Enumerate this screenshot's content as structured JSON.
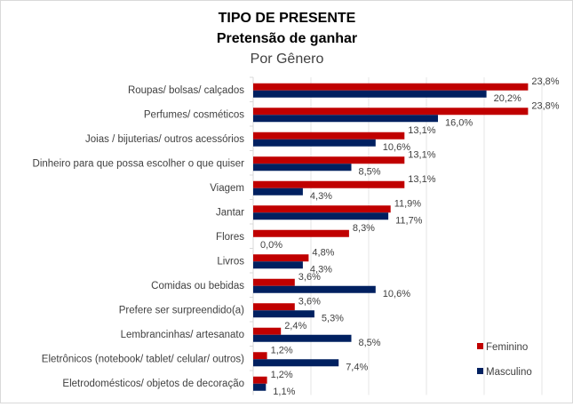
{
  "chart_data": {
    "type": "bar",
    "orientation": "horizontal",
    "title": "TIPO DE PRESENTE",
    "subtitle": "Pretensão de ganhar",
    "subtitle2": "Por Gênero",
    "xlim": [
      0,
      25
    ],
    "grid": true,
    "legend_position": "bottom-right",
    "categories": [
      "Roupas/ bolsas/ calçados",
      "Perfumes/ cosméticos",
      "Joias / bijuterias/ outros acessórios",
      "Dinheiro para que possa escolher o que quiser",
      "Viagem",
      "Jantar",
      "Flores",
      "Livros",
      "Comidas ou bebidas",
      "Prefere ser surpreendido(a)",
      "Lembrancinhas/ artesanato",
      "Eletrônicos (notebook/ tablet/ celular/ outros)",
      "Eletrodomésticos/ objetos de decoração"
    ],
    "series": [
      {
        "name": "Feminino",
        "color": "#c00000",
        "values": [
          23.8,
          23.8,
          13.1,
          13.1,
          13.1,
          11.9,
          8.3,
          4.8,
          3.6,
          3.6,
          2.4,
          1.2,
          1.2
        ],
        "labels": [
          "23,8%",
          "23,8%",
          "13,1%",
          "13,1%",
          "13,1%",
          "11,9%",
          "8,3%",
          "4,8%",
          "3,6%",
          "3,6%",
          "2,4%",
          "1,2%",
          "1,2%"
        ]
      },
      {
        "name": "Masculino",
        "color": "#002060",
        "values": [
          20.2,
          16.0,
          10.6,
          8.5,
          4.3,
          11.7,
          0.0,
          4.3,
          10.6,
          5.3,
          8.5,
          7.4,
          1.1
        ],
        "labels": [
          "20,2%",
          "16,0%",
          "10,6%",
          "8,5%",
          "4,3%",
          "11,7%",
          "0,0%",
          "4,3%",
          "10,6%",
          "5,3%",
          "8,5%",
          "7,4%",
          "1,1%"
        ]
      }
    ]
  }
}
